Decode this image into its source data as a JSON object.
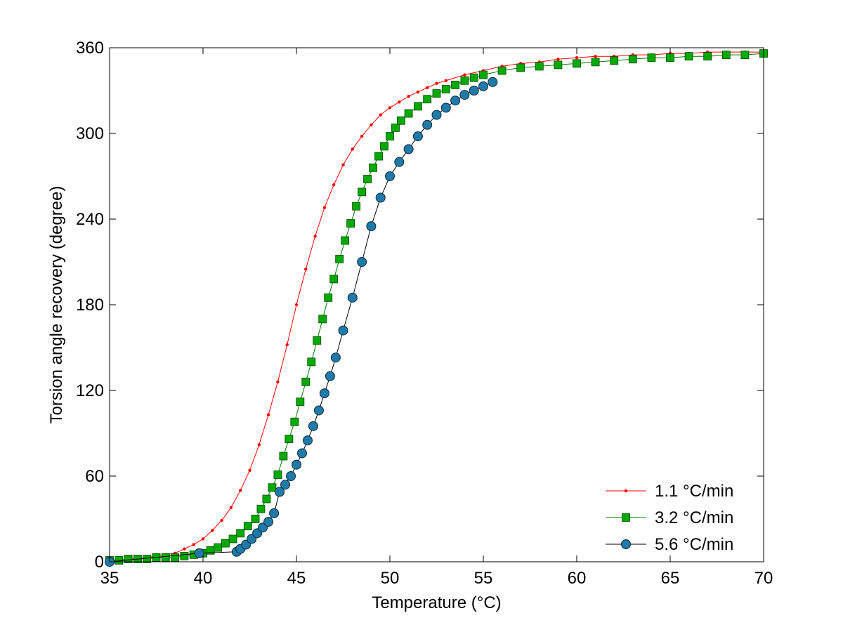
{
  "chart_data": {
    "type": "line",
    "title": "",
    "xlabel": "Temperature (°C)",
    "ylabel": "Torsion angle recovery (degree)",
    "xlim": [
      35,
      70
    ],
    "ylim": [
      0,
      360
    ],
    "xticks": [
      35,
      40,
      45,
      50,
      55,
      60,
      65,
      70
    ],
    "yticks": [
      0,
      60,
      120,
      180,
      240,
      300,
      360
    ],
    "grid": false,
    "legend_position": "bottom-right",
    "series": [
      {
        "name": "1.1 °C/min",
        "color": "#ff0000",
        "marker": "dot",
        "x": [
          35.0,
          35.5,
          36.0,
          36.5,
          37.0,
          37.5,
          38.0,
          38.5,
          39.0,
          39.5,
          40.0,
          40.5,
          41.0,
          41.5,
          42.0,
          42.5,
          43.0,
          43.5,
          44.0,
          44.5,
          45.0,
          45.5,
          46.0,
          46.5,
          47.0,
          47.5,
          48.0,
          48.5,
          49.0,
          49.5,
          50.0,
          50.5,
          51.0,
          51.5,
          52.0,
          52.5,
          53.0,
          54.0,
          55.0,
          56.0,
          57.0,
          58.0,
          59.0,
          60.0,
          61.0,
          62.0,
          63.0,
          64.0,
          65.0,
          66.0,
          67.0,
          68.0,
          69.0,
          70.0
        ],
        "y": [
          0,
          1,
          2,
          2,
          3,
          4,
          5,
          6,
          9,
          12,
          16,
          22,
          29,
          38,
          50,
          64,
          82,
          103,
          126,
          152,
          180,
          205,
          228,
          248,
          264,
          278,
          289,
          298,
          306,
          313,
          318,
          322,
          326,
          329,
          332,
          335,
          337,
          341,
          344,
          347,
          349,
          350,
          352,
          353,
          354,
          354,
          355,
          355,
          356,
          356,
          357,
          357,
          357,
          357
        ]
      },
      {
        "name": "3.2 °C/min",
        "color": "#00aa00",
        "marker": "square",
        "x": [
          35.0,
          35.5,
          36.0,
          36.5,
          37.0,
          37.5,
          38.0,
          38.5,
          39.0,
          39.5,
          40.0,
          40.4,
          40.8,
          41.2,
          41.6,
          42.0,
          42.4,
          42.8,
          43.1,
          43.4,
          43.7,
          44.0,
          44.3,
          44.6,
          44.9,
          45.2,
          45.5,
          45.8,
          46.1,
          46.4,
          46.7,
          47.0,
          47.3,
          47.6,
          47.9,
          48.2,
          48.5,
          48.8,
          49.1,
          49.4,
          49.7,
          50.0,
          50.3,
          50.6,
          51.0,
          51.5,
          52.0,
          52.5,
          53.0,
          53.5,
          54.0,
          54.5,
          55.0,
          56.0,
          57.0,
          58.0,
          59.0,
          60.0,
          61.0,
          62.0,
          63.0,
          64.0,
          65.0,
          66.0,
          67.0,
          68.0,
          69.0,
          70.0
        ],
        "y": [
          1,
          1,
          2,
          2,
          2,
          3,
          3,
          3,
          4,
          5,
          6,
          8,
          10,
          13,
          16,
          20,
          25,
          30,
          37,
          44,
          52,
          61,
          74,
          86,
          98,
          112,
          126,
          140,
          155,
          170,
          185,
          198,
          212,
          225,
          237,
          249,
          259,
          268,
          276,
          284,
          291,
          298,
          304,
          309,
          314,
          319,
          324,
          328,
          331,
          334,
          337,
          339,
          341,
          344,
          346,
          347,
          348,
          349,
          350,
          351,
          352,
          353,
          353,
          354,
          354,
          355,
          355,
          356
        ]
      },
      {
        "name": "5.6 °C/min",
        "color": "#1f7aa8",
        "marker": "circle",
        "x": [
          35.0,
          39.8,
          41.8,
          42.0,
          42.3,
          42.6,
          42.9,
          43.2,
          43.5,
          43.8,
          44.1,
          44.4,
          44.7,
          45.0,
          45.3,
          45.6,
          45.9,
          46.2,
          46.5,
          46.8,
          47.1,
          47.5,
          48.0,
          48.5,
          49.0,
          49.5,
          50.0,
          50.5,
          51.0,
          51.5,
          52.0,
          52.5,
          53.0,
          53.5,
          54.0,
          54.5,
          55.0,
          55.5
        ],
        "y": [
          0,
          6,
          7,
          9,
          12,
          16,
          20,
          24,
          28,
          34,
          49,
          54,
          60,
          68,
          76,
          85,
          95,
          106,
          118,
          130,
          143,
          162,
          185,
          210,
          235,
          255,
          270,
          280,
          289,
          298,
          306,
          313,
          318,
          323,
          327,
          330,
          333,
          336
        ]
      }
    ]
  }
}
